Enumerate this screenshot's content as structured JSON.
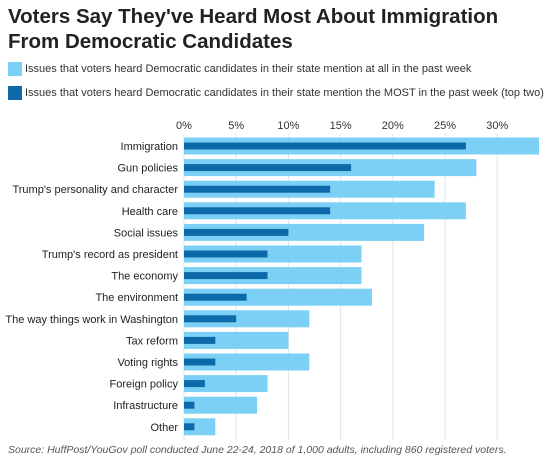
{
  "chart_data": {
    "type": "bar",
    "orientation": "horizontal",
    "title": "Voters Say They've Heard Most About Immigration From Democratic Candidates",
    "categories": [
      "Immigration",
      "Gun policies",
      "Trump's personality and character",
      "Health care",
      "Social issues",
      "Trump's record as president",
      "The economy",
      "The environment",
      "The way things work in Washington",
      "Tax reform",
      "Voting rights",
      "Foreign policy",
      "Infrastructure",
      "Other"
    ],
    "series": [
      {
        "name": "Issues that voters heard Democratic candidates in their state mention at all in the past week",
        "color": "#7dd0f5",
        "values": [
          34,
          28,
          24,
          27,
          23,
          17,
          17,
          18,
          12,
          10,
          12,
          8,
          7,
          3
        ]
      },
      {
        "name": "Issues that voters heard Democratic candidates in their state mention the MOST in the past week (top two)",
        "color": "#0d6aa8",
        "values": [
          27,
          16,
          14,
          14,
          10,
          8,
          8,
          6,
          5,
          3,
          3,
          2,
          1,
          1
        ]
      }
    ],
    "xlim": [
      0,
      34
    ],
    "x_ticks": [
      0,
      5,
      10,
      15,
      20,
      25,
      30
    ],
    "x_tick_labels": [
      "0%",
      "5%",
      "10%",
      "15%",
      "20%",
      "25%",
      "30%"
    ],
    "axis_position": "top",
    "grid": true,
    "legend_position": "top-left"
  },
  "source": "Source: HuffPost/YouGov poll conducted June 22-24, 2018 of 1,000 adults, including 860 registered voters."
}
